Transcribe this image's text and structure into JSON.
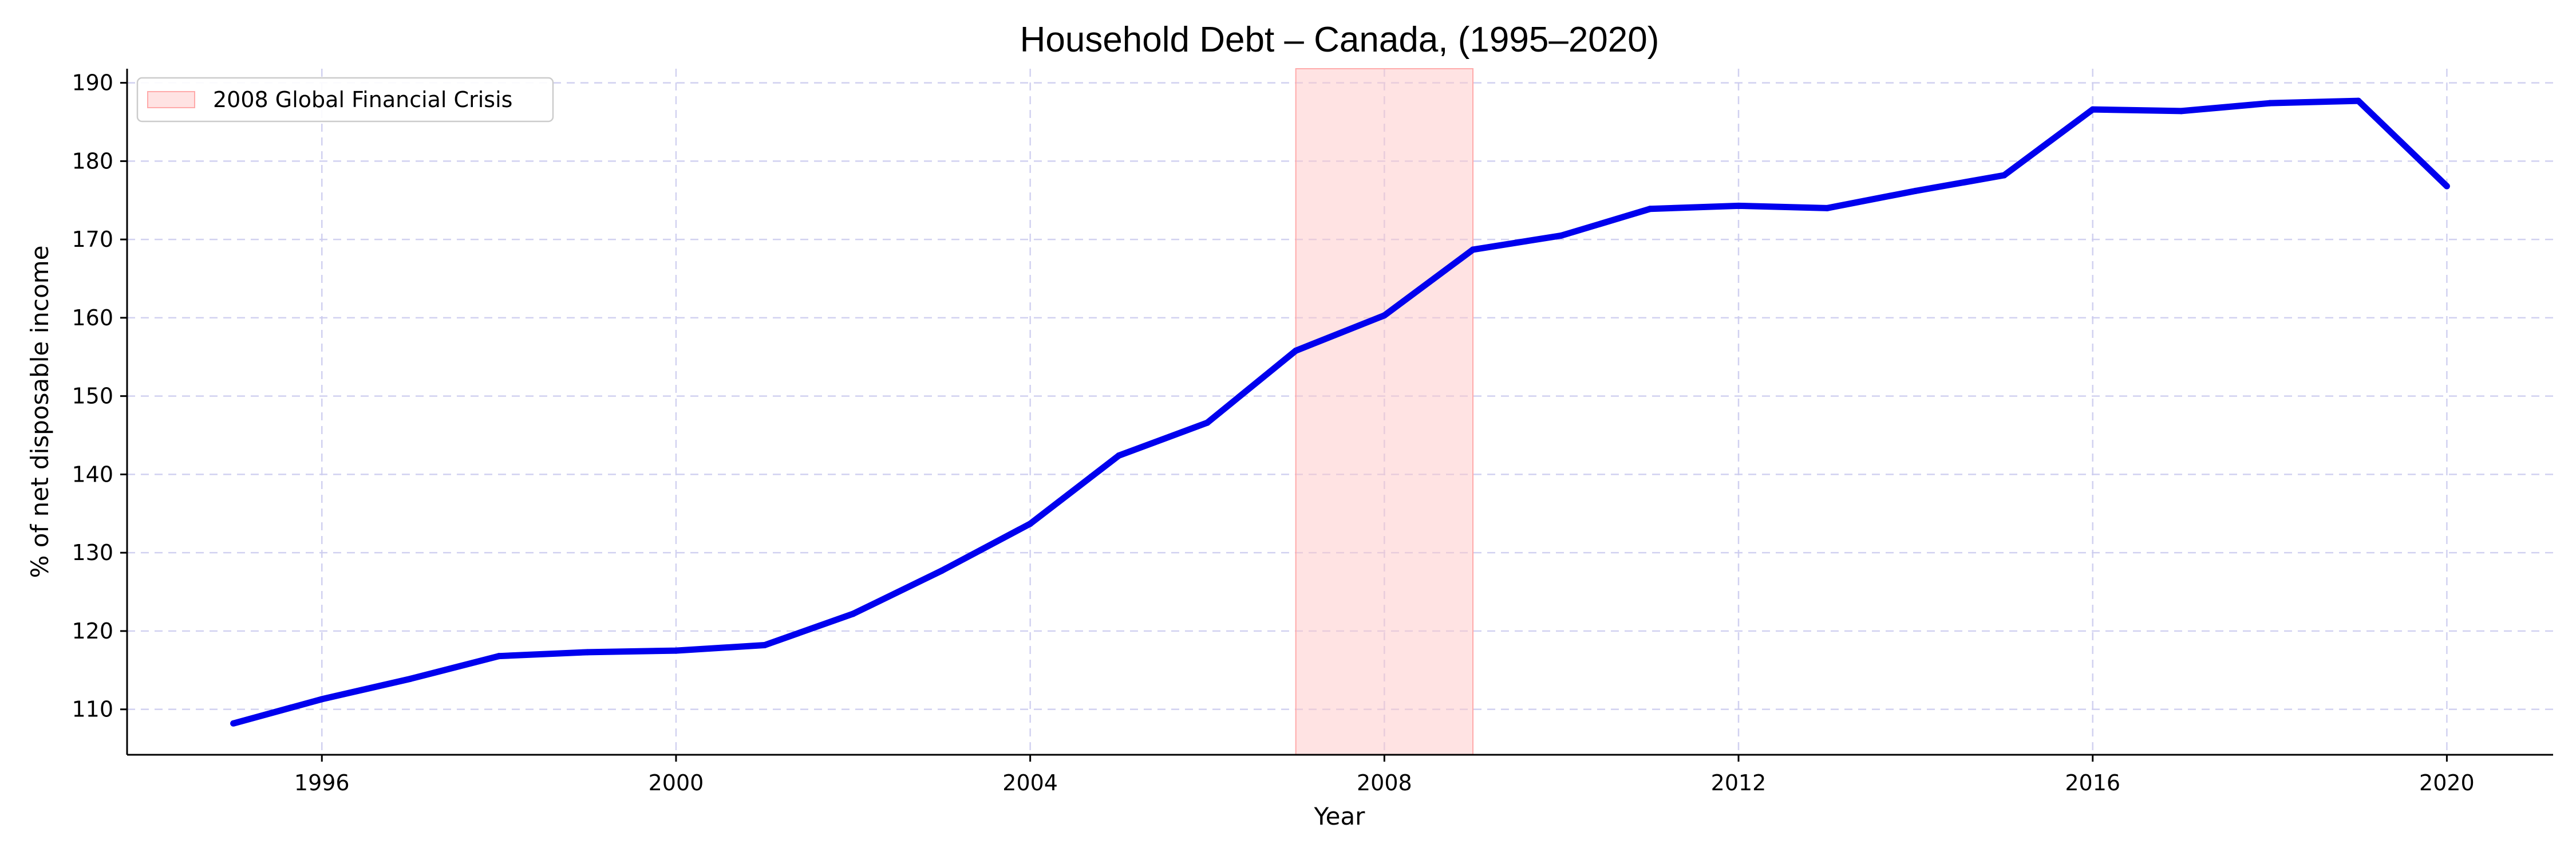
{
  "chart_data": {
    "type": "line",
    "title": "Household Debt – Canada, (1995–2020)",
    "xlabel": "Year",
    "ylabel": "% of net disposable income",
    "x": [
      1995,
      1996,
      1997,
      1998,
      1999,
      2000,
      2001,
      2002,
      2003,
      2004,
      2005,
      2006,
      2007,
      2008,
      2009,
      2010,
      2011,
      2012,
      2013,
      2014,
      2015,
      2016,
      2017,
      2018,
      2019,
      2020
    ],
    "series": [
      {
        "name": "",
        "color": "#0000ee",
        "values": [
          108.2,
          111.3,
          113.9,
          116.8,
          117.3,
          117.5,
          118.2,
          122.2,
          127.7,
          133.7,
          142.4,
          146.6,
          155.8,
          160.3,
          168.7,
          170.5,
          173.9,
          174.3,
          174.0,
          176.2,
          178.2,
          186.6,
          186.4,
          187.4,
          187.7,
          176.8
        ]
      }
    ],
    "shaded_region": {
      "label": "2008 Global Financial Crisis",
      "x_start": 2007,
      "x_end": 2009,
      "color": "#ffc8c8"
    },
    "xlim": [
      1993.8,
      2021.2
    ],
    "ylim": [
      104.2,
      191.8
    ],
    "x_ticks": [
      1996,
      2000,
      2004,
      2008,
      2012,
      2016,
      2020
    ],
    "y_ticks": [
      110,
      120,
      130,
      140,
      150,
      160,
      170,
      180,
      190
    ],
    "grid": true,
    "legend_position": "top-left"
  }
}
